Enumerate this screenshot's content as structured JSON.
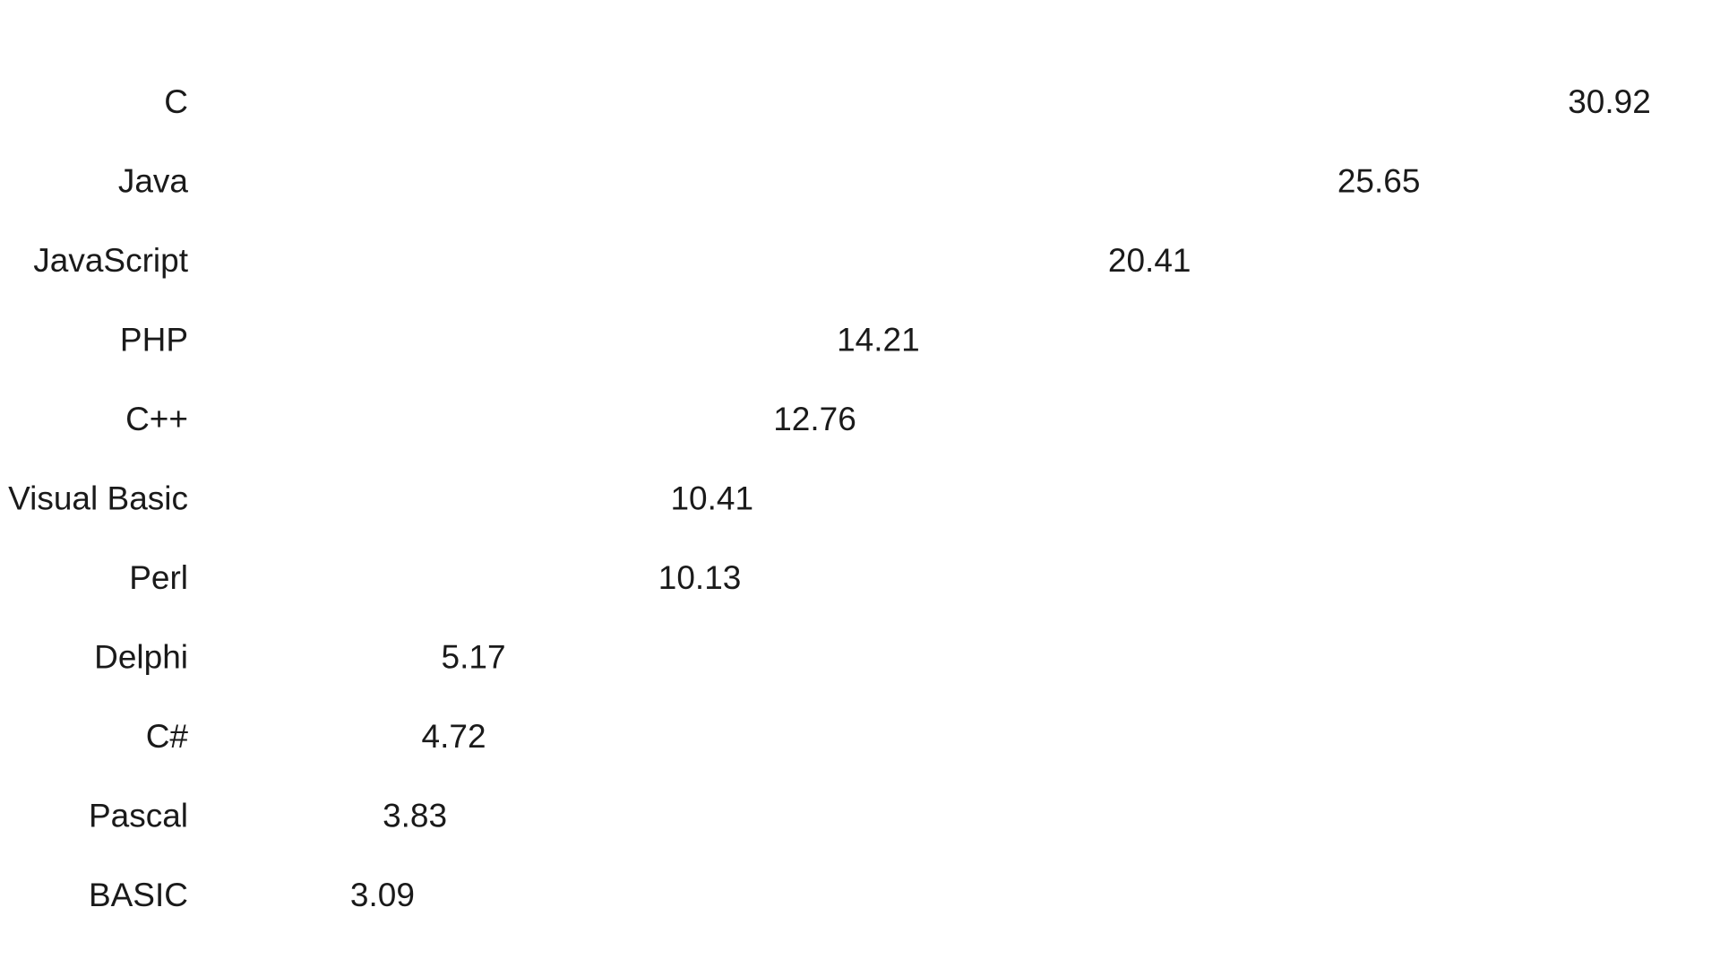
{
  "chart_data": {
    "type": "bar",
    "orientation": "horizontal",
    "title": "",
    "xlabel": "",
    "ylabel": "",
    "categories": [
      "C",
      "Java",
      "JavaScript",
      "PHP",
      "C++",
      "Visual Basic",
      "Perl",
      "Delphi",
      "C#",
      "Pascal",
      "BASIC"
    ],
    "values": [
      30.92,
      25.65,
      20.41,
      14.21,
      12.76,
      10.41,
      10.13,
      5.17,
      4.72,
      3.83,
      3.09
    ],
    "value_labels": [
      "30.92",
      "25.65",
      "20.41",
      "14.21",
      "12.76",
      "10.41",
      "10.13",
      "5.17",
      "4.72",
      "3.83",
      "3.09"
    ],
    "xlim": [
      0,
      32
    ],
    "grid": false,
    "legend": "none",
    "bar_color": "#ffffff",
    "text_color": "#1a1a1a"
  }
}
